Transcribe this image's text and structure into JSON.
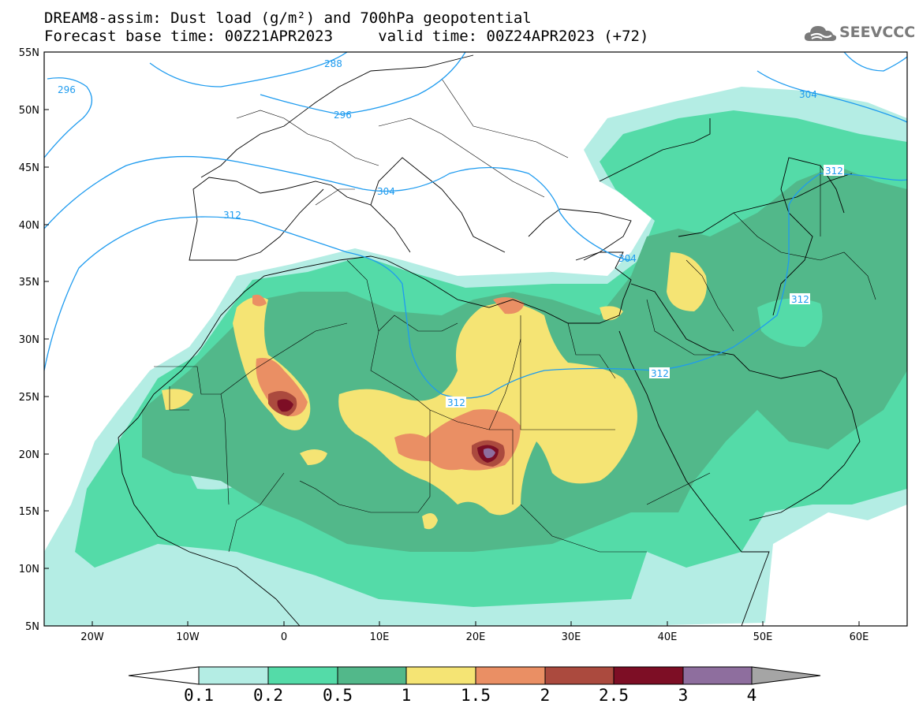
{
  "title": {
    "line1": "DREAM8-assim: Dust load (g/m²) and 700hPa geopotential",
    "line2": "Forecast base time: 00Z21APR2023     valid time: 00Z24APR2023 (+72)"
  },
  "logo": {
    "icon": "cloud-icon",
    "text": "SEEVCCC"
  },
  "axes": {
    "lat_labels": [
      "55N",
      "50N",
      "45N",
      "40N",
      "35N",
      "30N",
      "25N",
      "20N",
      "15N",
      "10N",
      "5N"
    ],
    "lon_labels": [
      "20W",
      "10W",
      "0",
      "10E",
      "20E",
      "30E",
      "40E",
      "50E",
      "60E"
    ]
  },
  "contours": [
    {
      "label": "296"
    },
    {
      "label": "288"
    },
    {
      "label": "296"
    },
    {
      "label": "304"
    },
    {
      "label": "304"
    },
    {
      "label": "304"
    },
    {
      "label": "312"
    },
    {
      "label": "312"
    },
    {
      "label": "312"
    },
    {
      "label": "312"
    },
    {
      "label": "312"
    }
  ],
  "colorbar": {
    "ticks": [
      "0.1",
      "0.2",
      "0.5",
      "1",
      "1.5",
      "2",
      "2.5",
      "3",
      "4"
    ],
    "colors": [
      "#b4ede4",
      "#54dba8",
      "#52b88a",
      "#f5e474",
      "#ea8f64",
      "#ab4a3e",
      "#7d0e25",
      "#8e6e9e"
    ],
    "under_color": "#ffffff",
    "over_color": "#a5a5a5"
  },
  "dust_colors": {
    "c1": "#b4ede4",
    "c2": "#54dba8",
    "c3": "#52b88a",
    "c4": "#f5e474",
    "c5": "#ea8f64",
    "c6": "#ab4a3e",
    "c7": "#7d0e25",
    "c8": "#8e6e9e"
  },
  "contour_color": "#1e9bef"
}
